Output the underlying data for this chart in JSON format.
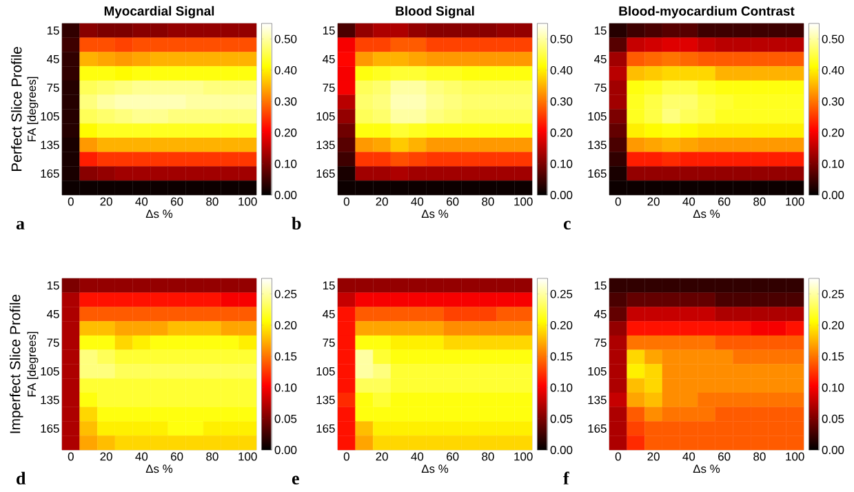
{
  "chart_data": [
    {
      "type": "heatmap",
      "title": "Myocardial Signal",
      "xlabel": "Δs %",
      "ylabel": "FA [degrees]",
      "annotations": [
        "Perfect Slice Profile",
        "a"
      ],
      "categories": [
        "0",
        null,
        "20",
        null,
        "40",
        null,
        "60",
        null,
        "80",
        null,
        "100"
      ],
      "y_categories": [
        "15",
        null,
        "45",
        null,
        "75",
        null,
        "105",
        null,
        "135",
        null,
        "165",
        null
      ],
      "clim": [
        0,
        0.55
      ],
      "cticks": [
        {
          "value": 0,
          "label": "0.00"
        },
        {
          "value": 0.1,
          "label": "0.10"
        },
        {
          "value": 0.2,
          "label": "0.20"
        },
        {
          "value": 0.3,
          "label": "0.30"
        },
        {
          "value": 0.4,
          "label": "0.40"
        },
        {
          "value": 0.5,
          "label": "0.50"
        }
      ],
      "cells": [
        [
          0.04,
          0.11,
          0.1,
          0.1,
          0.11,
          0.11,
          0.12,
          0.12,
          0.12,
          0.12,
          0.12
        ],
        [
          0.05,
          0.27,
          0.27,
          0.26,
          0.27,
          0.27,
          0.27,
          0.27,
          0.27,
          0.27,
          0.27
        ],
        [
          0.04,
          0.35,
          0.34,
          0.33,
          0.34,
          0.35,
          0.35,
          0.35,
          0.35,
          0.35,
          0.35
        ],
        [
          0.04,
          0.42,
          0.42,
          0.41,
          0.42,
          0.42,
          0.42,
          0.42,
          0.42,
          0.42,
          0.42
        ],
        [
          0.03,
          0.46,
          0.47,
          0.48,
          0.49,
          0.49,
          0.49,
          0.49,
          0.48,
          0.48,
          0.48
        ],
        [
          0.03,
          0.48,
          0.5,
          0.51,
          0.51,
          0.51,
          0.51,
          0.5,
          0.5,
          0.5,
          0.5
        ],
        [
          0.03,
          0.46,
          0.47,
          0.48,
          0.49,
          0.49,
          0.48,
          0.48,
          0.48,
          0.48,
          0.48
        ],
        [
          0.03,
          0.41,
          0.43,
          0.43,
          0.43,
          0.43,
          0.43,
          0.43,
          0.43,
          0.43,
          0.43
        ],
        [
          0.02,
          0.33,
          0.35,
          0.35,
          0.35,
          0.35,
          0.35,
          0.35,
          0.35,
          0.35,
          0.35
        ],
        [
          0.02,
          0.23,
          0.25,
          0.25,
          0.25,
          0.25,
          0.25,
          0.25,
          0.25,
          0.25,
          0.25
        ],
        [
          0.02,
          0.11,
          0.12,
          0.13,
          0.13,
          0.13,
          0.13,
          0.13,
          0.13,
          0.13,
          0.13
        ],
        [
          0.01,
          0.01,
          0.01,
          0.01,
          0.01,
          0.01,
          0.01,
          0.01,
          0.01,
          0.01,
          0.01
        ]
      ]
    },
    {
      "type": "heatmap",
      "title": "Blood Signal",
      "xlabel": "Δs %",
      "annotations": [
        "b"
      ],
      "categories": [
        "0",
        null,
        "20",
        null,
        "40",
        null,
        "60",
        null,
        "80",
        null,
        "100"
      ],
      "y_categories": [
        "15",
        null,
        "45",
        null,
        "75",
        null,
        "105",
        null,
        "135",
        null,
        "165",
        null
      ],
      "clim": [
        0,
        0.55
      ],
      "cticks": [
        {
          "value": 0,
          "label": "0.00"
        },
        {
          "value": 0.1,
          "label": "0.10"
        },
        {
          "value": 0.2,
          "label": "0.20"
        },
        {
          "value": 0.3,
          "label": "0.30"
        },
        {
          "value": 0.4,
          "label": "0.40"
        },
        {
          "value": 0.5,
          "label": "0.50"
        }
      ],
      "cells": [
        [
          0.06,
          0.12,
          0.14,
          0.14,
          0.12,
          0.11,
          0.11,
          0.11,
          0.11,
          0.12,
          0.12
        ],
        [
          0.2,
          0.26,
          0.26,
          0.28,
          0.28,
          0.26,
          0.26,
          0.26,
          0.26,
          0.26,
          0.26
        ],
        [
          0.21,
          0.33,
          0.35,
          0.35,
          0.34,
          0.33,
          0.33,
          0.33,
          0.33,
          0.33,
          0.33
        ],
        [
          0.2,
          0.42,
          0.43,
          0.44,
          0.44,
          0.43,
          0.43,
          0.42,
          0.42,
          0.42,
          0.42
        ],
        [
          0.2,
          0.46,
          0.47,
          0.5,
          0.5,
          0.48,
          0.47,
          0.46,
          0.46,
          0.46,
          0.46
        ],
        [
          0.15,
          0.47,
          0.48,
          0.51,
          0.51,
          0.49,
          0.48,
          0.47,
          0.47,
          0.47,
          0.47
        ],
        [
          0.12,
          0.46,
          0.47,
          0.5,
          0.5,
          0.48,
          0.47,
          0.46,
          0.46,
          0.46,
          0.46
        ],
        [
          0.09,
          0.42,
          0.42,
          0.44,
          0.43,
          0.42,
          0.42,
          0.42,
          0.42,
          0.42,
          0.42
        ],
        [
          0.07,
          0.33,
          0.34,
          0.37,
          0.35,
          0.33,
          0.33,
          0.33,
          0.33,
          0.33,
          0.33
        ],
        [
          0.05,
          0.25,
          0.25,
          0.27,
          0.26,
          0.25,
          0.25,
          0.25,
          0.25,
          0.25,
          0.25
        ],
        [
          0.02,
          0.13,
          0.13,
          0.14,
          0.13,
          0.13,
          0.13,
          0.13,
          0.13,
          0.13,
          0.13
        ],
        [
          0.01,
          0.01,
          0.01,
          0.01,
          0.01,
          0.01,
          0.01,
          0.01,
          0.01,
          0.01,
          0.01
        ]
      ]
    },
    {
      "type": "heatmap",
      "title": "Blood-myocardium Contrast",
      "xlabel": "Δs %",
      "annotations": [
        "c"
      ],
      "categories": [
        "0",
        null,
        "20",
        null,
        "40",
        null,
        "60",
        null,
        "80",
        null,
        "100"
      ],
      "y_categories": [
        "15",
        null,
        "45",
        null,
        "75",
        null,
        "105",
        null,
        "135",
        null,
        "165",
        null
      ],
      "clim": [
        0,
        0.55
      ],
      "cticks": [
        {
          "value": 0,
          "label": "0.00"
        },
        {
          "value": 0.1,
          "label": "0.10"
        },
        {
          "value": 0.2,
          "label": "0.20"
        },
        {
          "value": 0.3,
          "label": "0.30"
        },
        {
          "value": 0.4,
          "label": "0.40"
        },
        {
          "value": 0.5,
          "label": "0.50"
        }
      ],
      "cells": [
        [
          0.03,
          0.05,
          0.06,
          0.07,
          0.07,
          0.05,
          0.05,
          0.05,
          0.05,
          0.05,
          0.05
        ],
        [
          0.07,
          0.16,
          0.17,
          0.18,
          0.18,
          0.16,
          0.15,
          0.15,
          0.15,
          0.15,
          0.15
        ],
        [
          0.13,
          0.28,
          0.29,
          0.3,
          0.29,
          0.28,
          0.28,
          0.28,
          0.28,
          0.28,
          0.28
        ],
        [
          0.15,
          0.36,
          0.37,
          0.38,
          0.38,
          0.38,
          0.35,
          0.35,
          0.35,
          0.35,
          0.35
        ],
        [
          0.13,
          0.42,
          0.43,
          0.45,
          0.45,
          0.43,
          0.42,
          0.42,
          0.42,
          0.42,
          0.42
        ],
        [
          0.13,
          0.43,
          0.45,
          0.47,
          0.47,
          0.45,
          0.44,
          0.43,
          0.43,
          0.43,
          0.43
        ],
        [
          0.1,
          0.43,
          0.45,
          0.48,
          0.46,
          0.45,
          0.43,
          0.43,
          0.43,
          0.43,
          0.43
        ],
        [
          0.08,
          0.4,
          0.41,
          0.42,
          0.41,
          0.4,
          0.4,
          0.4,
          0.4,
          0.4,
          0.4
        ],
        [
          0.06,
          0.33,
          0.34,
          0.35,
          0.34,
          0.33,
          0.33,
          0.33,
          0.33,
          0.33,
          0.33
        ],
        [
          0.04,
          0.23,
          0.23,
          0.24,
          0.23,
          0.23,
          0.23,
          0.23,
          0.23,
          0.23,
          0.23
        ],
        [
          0.02,
          0.12,
          0.12,
          0.12,
          0.12,
          0.12,
          0.12,
          0.12,
          0.12,
          0.12,
          0.12
        ],
        [
          0.01,
          0.01,
          0.01,
          0.01,
          0.01,
          0.01,
          0.01,
          0.01,
          0.01,
          0.01,
          0.01
        ]
      ]
    },
    {
      "type": "heatmap",
      "xlabel": "Δs %",
      "ylabel": "FA [degrees]",
      "annotations": [
        "Imperfect Slice Profile",
        "d"
      ],
      "categories": [
        "0",
        null,
        "20",
        null,
        "40",
        null,
        "60",
        null,
        "80",
        null,
        "100"
      ],
      "y_categories": [
        "15",
        null,
        "45",
        null,
        "75",
        null,
        "105",
        null,
        "135",
        null,
        "165",
        null
      ],
      "clim": [
        0,
        0.275
      ],
      "cticks": [
        {
          "value": 0,
          "label": "0.00"
        },
        {
          "value": 0.05,
          "label": "0.05"
        },
        {
          "value": 0.1,
          "label": "0.10"
        },
        {
          "value": 0.15,
          "label": "0.15"
        },
        {
          "value": 0.2,
          "label": "0.20"
        },
        {
          "value": 0.25,
          "label": "0.25"
        }
      ],
      "cells": [
        [
          0.05,
          0.06,
          0.06,
          0.06,
          0.06,
          0.06,
          0.06,
          0.06,
          0.06,
          0.06,
          0.06
        ],
        [
          0.07,
          0.11,
          0.11,
          0.11,
          0.11,
          0.11,
          0.11,
          0.11,
          0.11,
          0.1,
          0.1
        ],
        [
          0.07,
          0.14,
          0.14,
          0.14,
          0.14,
          0.14,
          0.14,
          0.14,
          0.14,
          0.14,
          0.14
        ],
        [
          0.07,
          0.18,
          0.18,
          0.17,
          0.17,
          0.17,
          0.18,
          0.18,
          0.18,
          0.17,
          0.17
        ],
        [
          0.07,
          0.21,
          0.21,
          0.19,
          0.2,
          0.21,
          0.21,
          0.21,
          0.21,
          0.21,
          0.2
        ],
        [
          0.07,
          0.24,
          0.23,
          0.22,
          0.22,
          0.22,
          0.22,
          0.22,
          0.22,
          0.22,
          0.22
        ],
        [
          0.07,
          0.24,
          0.24,
          0.23,
          0.23,
          0.23,
          0.23,
          0.23,
          0.23,
          0.23,
          0.23
        ],
        [
          0.07,
          0.22,
          0.22,
          0.22,
          0.22,
          0.22,
          0.22,
          0.22,
          0.22,
          0.22,
          0.22
        ],
        [
          0.07,
          0.21,
          0.22,
          0.22,
          0.22,
          0.22,
          0.22,
          0.22,
          0.22,
          0.22,
          0.22
        ],
        [
          0.07,
          0.19,
          0.21,
          0.21,
          0.21,
          0.21,
          0.21,
          0.21,
          0.21,
          0.21,
          0.21
        ],
        [
          0.07,
          0.18,
          0.2,
          0.2,
          0.2,
          0.2,
          0.21,
          0.21,
          0.2,
          0.2,
          0.2
        ],
        [
          0.07,
          0.17,
          0.18,
          0.19,
          0.19,
          0.19,
          0.19,
          0.19,
          0.19,
          0.19,
          0.19
        ]
      ]
    },
    {
      "type": "heatmap",
      "xlabel": "Δs %",
      "annotations": [
        "e"
      ],
      "categories": [
        "0",
        null,
        "20",
        null,
        "40",
        null,
        "60",
        null,
        "80",
        null,
        "100"
      ],
      "y_categories": [
        "15",
        null,
        "45",
        null,
        "75",
        null,
        "105",
        null,
        "135",
        null,
        "165",
        null
      ],
      "clim": [
        0,
        0.275
      ],
      "cticks": [
        {
          "value": 0,
          "label": "0.00"
        },
        {
          "value": 0.05,
          "label": "0.05"
        },
        {
          "value": 0.1,
          "label": "0.10"
        },
        {
          "value": 0.15,
          "label": "0.15"
        },
        {
          "value": 0.2,
          "label": "0.20"
        },
        {
          "value": 0.25,
          "label": "0.25"
        }
      ],
      "cells": [
        [
          0.06,
          0.06,
          0.06,
          0.06,
          0.06,
          0.06,
          0.06,
          0.06,
          0.06,
          0.06,
          0.06
        ],
        [
          0.08,
          0.1,
          0.1,
          0.1,
          0.1,
          0.1,
          0.1,
          0.1,
          0.1,
          0.1,
          0.1
        ],
        [
          0.11,
          0.14,
          0.14,
          0.14,
          0.14,
          0.14,
          0.13,
          0.13,
          0.13,
          0.14,
          0.14
        ],
        [
          0.11,
          0.17,
          0.17,
          0.17,
          0.17,
          0.17,
          0.16,
          0.16,
          0.16,
          0.16,
          0.16
        ],
        [
          0.11,
          0.21,
          0.21,
          0.2,
          0.2,
          0.2,
          0.19,
          0.19,
          0.19,
          0.19,
          0.19
        ],
        [
          0.11,
          0.25,
          0.22,
          0.21,
          0.21,
          0.21,
          0.21,
          0.21,
          0.21,
          0.21,
          0.21
        ],
        [
          0.11,
          0.25,
          0.24,
          0.22,
          0.22,
          0.22,
          0.22,
          0.22,
          0.22,
          0.22,
          0.22
        ],
        [
          0.11,
          0.23,
          0.23,
          0.22,
          0.22,
          0.22,
          0.22,
          0.22,
          0.22,
          0.22,
          0.22
        ],
        [
          0.12,
          0.21,
          0.22,
          0.21,
          0.21,
          0.21,
          0.21,
          0.21,
          0.21,
          0.21,
          0.21
        ],
        [
          0.11,
          0.21,
          0.21,
          0.21,
          0.21,
          0.21,
          0.21,
          0.21,
          0.21,
          0.21,
          0.21
        ],
        [
          0.11,
          0.18,
          0.2,
          0.2,
          0.2,
          0.2,
          0.2,
          0.2,
          0.2,
          0.2,
          0.2
        ],
        [
          0.11,
          0.17,
          0.19,
          0.19,
          0.19,
          0.19,
          0.19,
          0.19,
          0.19,
          0.19,
          0.19
        ]
      ]
    },
    {
      "type": "heatmap",
      "xlabel": "Δs %",
      "annotations": [
        "f"
      ],
      "categories": [
        "0",
        null,
        "20",
        null,
        "40",
        null,
        "60",
        null,
        "80",
        null,
        "100"
      ],
      "y_categories": [
        "15",
        null,
        "45",
        null,
        "75",
        null,
        "105",
        null,
        "135",
        null,
        "165",
        null
      ],
      "clim": [
        0,
        0.275
      ],
      "cticks": [
        {
          "value": 0,
          "label": "0.00"
        },
        {
          "value": 0.05,
          "label": "0.05"
        },
        {
          "value": 0.1,
          "label": "0.10"
        },
        {
          "value": 0.15,
          "label": "0.15"
        },
        {
          "value": 0.2,
          "label": "0.20"
        },
        {
          "value": 0.25,
          "label": "0.25"
        }
      ],
      "cells": [
        [
          0.02,
          0.02,
          0.02,
          0.02,
          0.02,
          0.02,
          0.02,
          0.02,
          0.02,
          0.02,
          0.02
        ],
        [
          0.03,
          0.04,
          0.04,
          0.04,
          0.04,
          0.04,
          0.03,
          0.03,
          0.03,
          0.03,
          0.03
        ],
        [
          0.04,
          0.08,
          0.08,
          0.08,
          0.08,
          0.08,
          0.07,
          0.07,
          0.07,
          0.07,
          0.07
        ],
        [
          0.06,
          0.11,
          0.11,
          0.11,
          0.11,
          0.11,
          0.11,
          0.11,
          0.1,
          0.1,
          0.11
        ],
        [
          0.07,
          0.15,
          0.15,
          0.15,
          0.15,
          0.15,
          0.14,
          0.14,
          0.14,
          0.14,
          0.14
        ],
        [
          0.07,
          0.19,
          0.17,
          0.16,
          0.16,
          0.16,
          0.16,
          0.15,
          0.15,
          0.15,
          0.15
        ],
        [
          0.07,
          0.2,
          0.19,
          0.16,
          0.16,
          0.16,
          0.16,
          0.16,
          0.16,
          0.16,
          0.16
        ],
        [
          0.07,
          0.18,
          0.19,
          0.16,
          0.16,
          0.16,
          0.16,
          0.16,
          0.16,
          0.16,
          0.16
        ],
        [
          0.08,
          0.17,
          0.18,
          0.16,
          0.16,
          0.15,
          0.15,
          0.15,
          0.15,
          0.15,
          0.15
        ],
        [
          0.07,
          0.14,
          0.16,
          0.15,
          0.15,
          0.15,
          0.14,
          0.14,
          0.14,
          0.14,
          0.14
        ],
        [
          0.07,
          0.13,
          0.14,
          0.14,
          0.14,
          0.14,
          0.14,
          0.14,
          0.14,
          0.14,
          0.14
        ],
        [
          0.07,
          0.12,
          0.14,
          0.14,
          0.14,
          0.14,
          0.14,
          0.14,
          0.14,
          0.14,
          0.14
        ]
      ]
    }
  ]
}
